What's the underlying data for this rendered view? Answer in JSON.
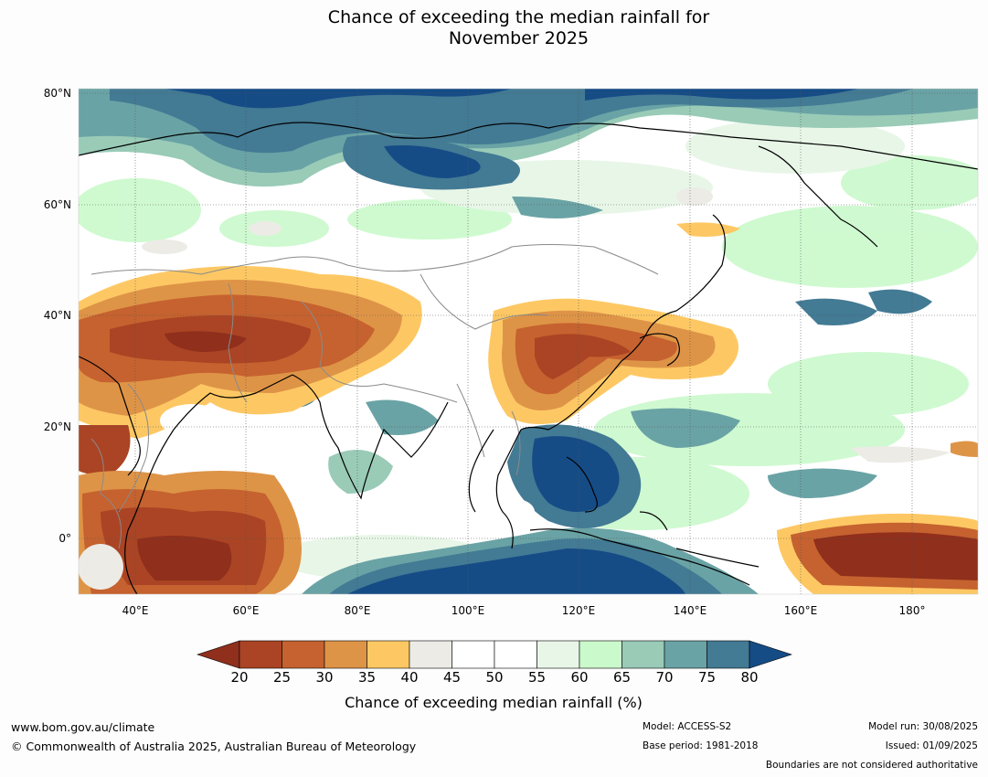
{
  "title": {
    "line1": "Chance of exceeding the median rainfall for",
    "line2": "November 2025"
  },
  "map": {
    "lat_labels": [
      "80°N",
      "60°N",
      "40°N",
      "20°N",
      "0°"
    ],
    "lon_labels": [
      "40°E",
      "60°E",
      "80°E",
      "100°E",
      "120°E",
      "140°E",
      "160°E",
      "180°"
    ],
    "extent": {
      "lon_min": 30,
      "lon_max": 192,
      "lat_min": -10,
      "lat_max": 81
    }
  },
  "colorbar": {
    "ticks": [
      "20",
      "25",
      "30",
      "35",
      "40",
      "45",
      "50",
      "55",
      "60",
      "65",
      "70",
      "75",
      "80"
    ],
    "label": "Chance of exceeding median rainfall (%)",
    "colors": {
      "below_20": "#8f2f1c",
      "b20_25": "#aa4424",
      "b25_30": "#c5622f",
      "b30_35": "#de9447",
      "b35_40": "#fdc864",
      "b40_45": "#ecebe6",
      "b45_50": "#ffffff",
      "b50_55": "#ffffff",
      "b55_60": "#e8f6e8",
      "b60_65": "#caf9cb",
      "b65_70": "#99cbb7",
      "b70_75": "#6aa3a5",
      "b75_80": "#437a94",
      "above_80": "#154c86"
    }
  },
  "footer": {
    "website": "www.bom.gov.au/climate",
    "copyright": "© Commonwealth of Australia 2025, Australian Bureau of Meteorology",
    "model": "Model: ACCESS-S2",
    "base_period": "Base period: 1981-2018",
    "model_run": "Model run: 30/08/2025",
    "issued": "Issued: 01/09/2025",
    "disclaimer": "Boundaries are not considered authoritative"
  }
}
